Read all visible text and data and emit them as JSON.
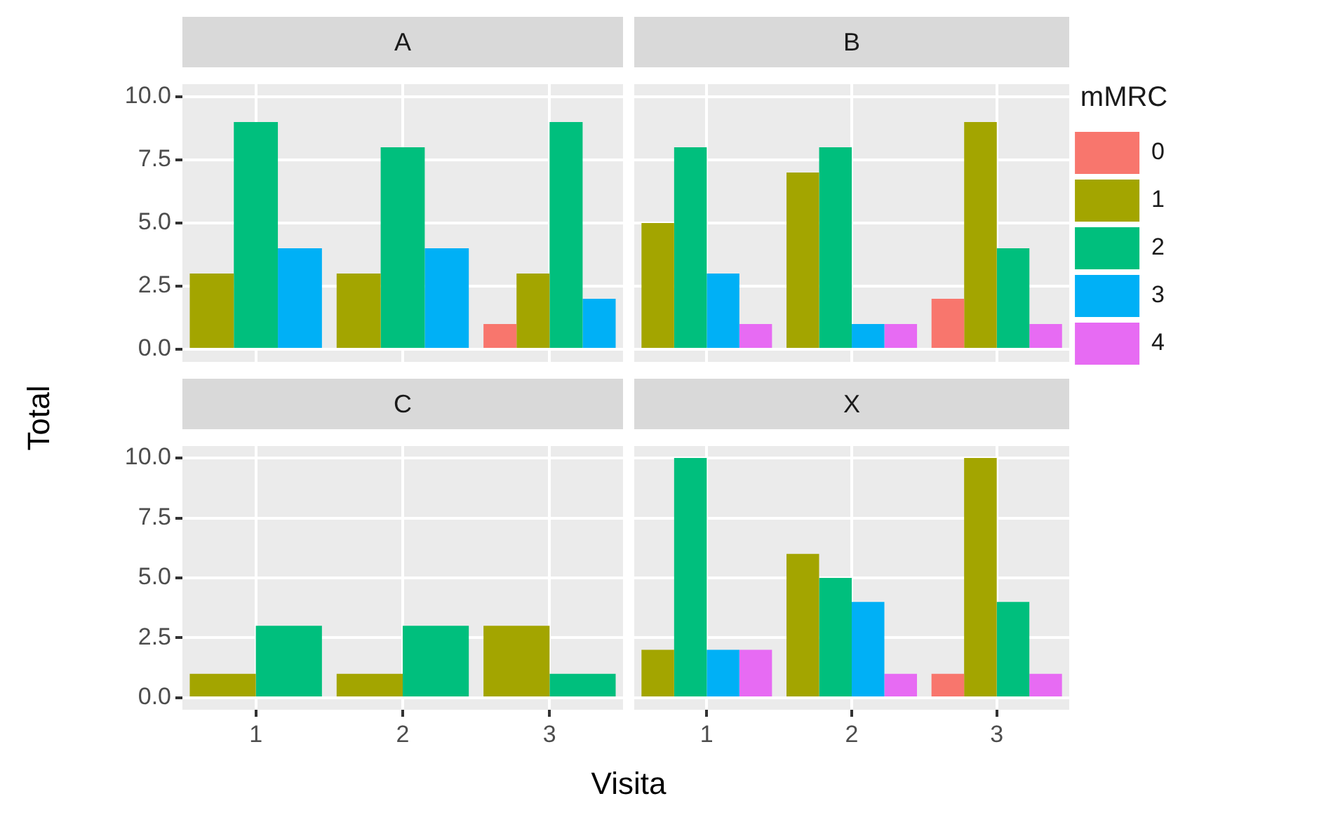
{
  "chart_data": [
    {
      "type": "bar",
      "title": "A",
      "ylabel": "Total",
      "xlabel": "Visita",
      "grid": true,
      "tick_labels": "y",
      "categories": [
        "1",
        "2",
        "3"
      ],
      "ylim": [
        -0.5,
        10.5
      ],
      "yticks": [
        {
          "value": 0,
          "label": "0.0"
        },
        {
          "value": 2.5,
          "label": "2.5"
        },
        {
          "value": 5,
          "label": "5.0"
        },
        {
          "value": 7.5,
          "label": "7.5"
        },
        {
          "value": 10,
          "label": "10.0"
        }
      ],
      "series": [
        {
          "color": "#f8766d",
          "values": [
            null,
            null,
            1
          ]
        },
        {
          "color": "#a3a500",
          "values": [
            3,
            3,
            3
          ]
        },
        {
          "color": "#00bf7d",
          "values": [
            9,
            8,
            9
          ]
        },
        {
          "color": "#00b0f6",
          "values": [
            4,
            4,
            2
          ]
        }
      ]
    },
    {
      "type": "bar",
      "title": "B",
      "legend_title": "mMRC",
      "legend": "right",
      "grid": true,
      "tick_labels": false,
      "categories": [
        "1",
        "2",
        "3"
      ],
      "ylim": [
        -0.5,
        10.5
      ],
      "yticks": [
        0,
        2.5,
        5,
        7.5,
        10
      ],
      "series": [
        {
          "name": "0",
          "color": "#f8766d",
          "values": [
            null,
            null,
            2
          ]
        },
        {
          "name": "1",
          "color": "#a3a500",
          "values": [
            5,
            7,
            9
          ]
        },
        {
          "name": "2",
          "color": "#00bf7d",
          "values": [
            8,
            8,
            4
          ]
        },
        {
          "name": "3",
          "color": "#00b0f6",
          "values": [
            3,
            1,
            null
          ]
        },
        {
          "name": "4",
          "color": "#e76bf3",
          "values": [
            1,
            1,
            1
          ]
        }
      ]
    },
    {
      "type": "bar",
      "title": "C",
      "grid": true,
      "categories": [
        "1",
        "2",
        "3"
      ],
      "ylim": [
        -0.5,
        10.5
      ],
      "yticks": [
        {
          "value": 0,
          "label": "0.0"
        },
        {
          "value": 2.5,
          "label": "2.5"
        },
        {
          "value": 5,
          "label": "5.0"
        },
        {
          "value": 7.5,
          "label": "7.5"
        },
        {
          "value": 10,
          "label": "10.0"
        }
      ],
      "series": [
        {
          "color": "#a3a500",
          "values": [
            1,
            1,
            3
          ]
        },
        {
          "color": "#00bf7d",
          "values": [
            3,
            3,
            1
          ]
        }
      ]
    },
    {
      "type": "bar",
      "title": "X",
      "grid": true,
      "tick_labels": "x",
      "categories": [
        "1",
        "2",
        "3"
      ],
      "ylim": [
        -0.5,
        10.5
      ],
      "yticks": [
        0,
        2.5,
        5,
        7.5,
        10
      ],
      "series": [
        {
          "color": "#f8766d",
          "values": [
            null,
            null,
            1
          ]
        },
        {
          "color": "#a3a500",
          "values": [
            2,
            6,
            10
          ]
        },
        {
          "color": "#00bf7d",
          "values": [
            10,
            5,
            4
          ]
        },
        {
          "color": "#00b0f6",
          "values": [
            2,
            4,
            null
          ]
        },
        {
          "color": "#e76bf3",
          "values": [
            2,
            1,
            1
          ]
        }
      ]
    }
  ]
}
